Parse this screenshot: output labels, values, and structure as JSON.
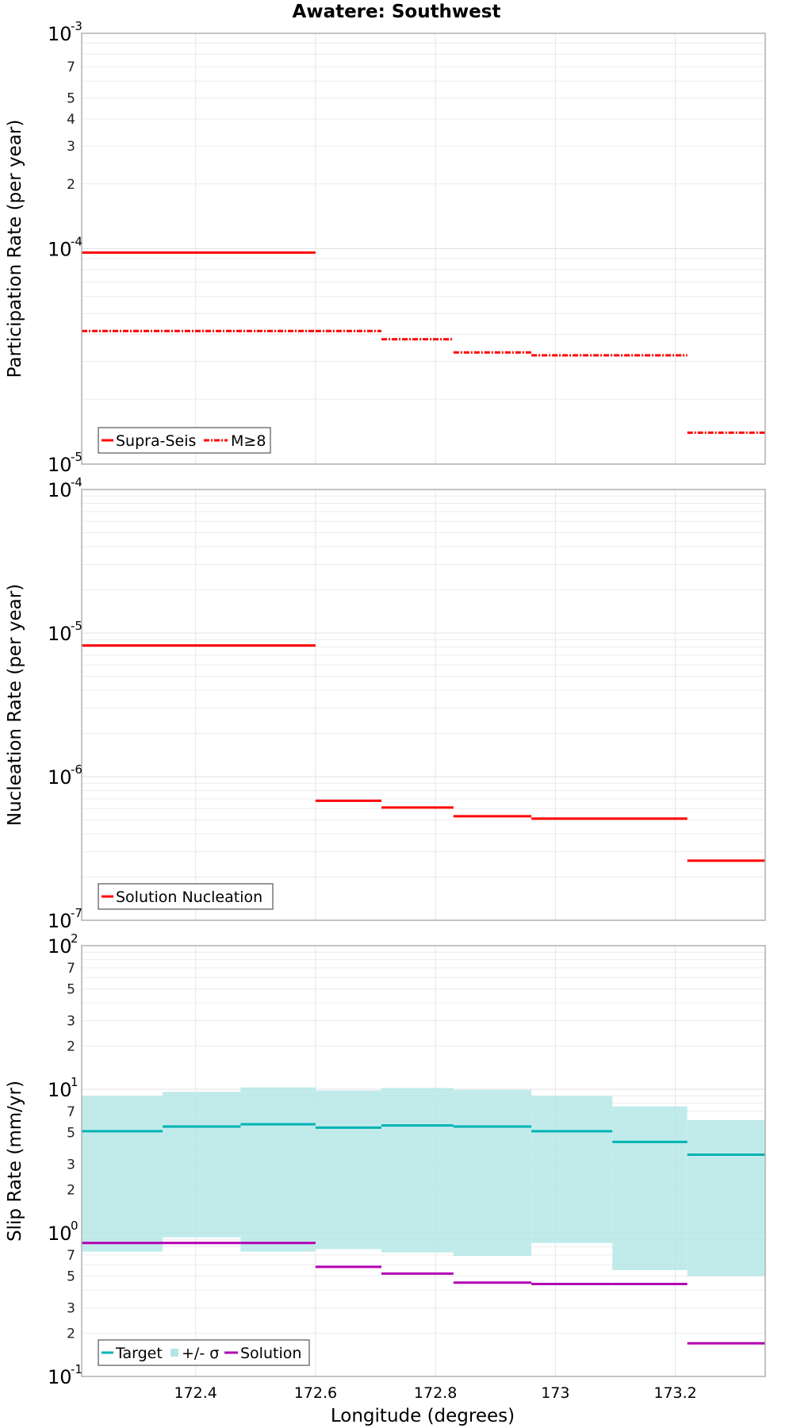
{
  "chart_data": {
    "type": "line",
    "title": "Awatere: Southwest",
    "xlabel": "Longitude (degrees)",
    "xlim": [
      172.21,
      173.35
    ],
    "xticks": [
      "172.4",
      "172.6",
      "172.8",
      "173",
      "173.2"
    ],
    "xtick_values": [
      172.4,
      172.6,
      172.8,
      173.0,
      173.2
    ],
    "panels": [
      {
        "ylabel": "Participation Rate (per year)",
        "ylim_exp": [
          -5,
          -3
        ],
        "y_major_labels": [
          {
            "exp": -3,
            "base": "10",
            "sup": "-3"
          },
          {
            "exp": -4,
            "base": "10",
            "sup": "-4"
          },
          {
            "exp": -5,
            "base": "10",
            "sup": "-5"
          }
        ],
        "y_minor_labels": [
          "7",
          "5",
          "4",
          "3",
          "2"
        ],
        "series": [
          {
            "name": "Supra-Seis",
            "color": "#ff0000",
            "style": "solid",
            "segments": [
              {
                "x0": 172.21,
                "x1": 172.6,
                "y": 9.6e-05
              }
            ]
          },
          {
            "name": "M≥8",
            "color": "#ff0000",
            "style": "dashdot",
            "segments": [
              {
                "x0": 172.21,
                "x1": 172.6,
                "y": 4.15e-05
              },
              {
                "x0": 172.6,
                "x1": 172.71,
                "y": 4.15e-05
              },
              {
                "x0": 172.71,
                "x1": 172.83,
                "y": 3.8e-05
              },
              {
                "x0": 172.83,
                "x1": 172.96,
                "y": 3.3e-05
              },
              {
                "x0": 172.96,
                "x1": 173.22,
                "y": 3.2e-05
              },
              {
                "x0": 173.22,
                "x1": 173.35,
                "y": 1.4e-05
              }
            ]
          }
        ],
        "legend": [
          "Supra-Seis",
          "M≥8"
        ]
      },
      {
        "ylabel": "Nucleation Rate (per year)",
        "ylim_exp": [
          -7,
          -4
        ],
        "y_major_labels": [
          {
            "exp": -4,
            "base": "10",
            "sup": "-4"
          },
          {
            "exp": -5,
            "base": "10",
            "sup": "-5"
          },
          {
            "exp": -6,
            "base": "10",
            "sup": "-6"
          },
          {
            "exp": -7,
            "base": "10",
            "sup": "-7"
          }
        ],
        "y_minor_labels": [],
        "series": [
          {
            "name": "Solution Nucleation",
            "color": "#ff0000",
            "style": "solid",
            "segments": [
              {
                "x0": 172.21,
                "x1": 172.6,
                "y": 8.2e-06
              },
              {
                "x0": 172.6,
                "x1": 172.71,
                "y": 6.8e-07
              },
              {
                "x0": 172.71,
                "x1": 172.83,
                "y": 6.1e-07
              },
              {
                "x0": 172.83,
                "x1": 172.96,
                "y": 5.3e-07
              },
              {
                "x0": 172.96,
                "x1": 173.22,
                "y": 5.1e-07
              },
              {
                "x0": 173.22,
                "x1": 173.35,
                "y": 2.6e-07
              }
            ]
          }
        ],
        "legend": [
          "Solution Nucleation"
        ]
      },
      {
        "ylabel": "Slip Rate (mm/yr)",
        "ylim_exp": [
          -1,
          2
        ],
        "y_major_labels": [
          {
            "exp": 2,
            "base": "10",
            "sup": "2"
          },
          {
            "exp": 1,
            "base": "10",
            "sup": "1"
          },
          {
            "exp": 0,
            "base": "10",
            "sup": "0"
          },
          {
            "exp": -1,
            "base": "10",
            "sup": "-1"
          }
        ],
        "y_minor_labels": [
          "7",
          "5",
          "3",
          "2",
          "7",
          "5",
          "3",
          "2",
          "7",
          "5",
          "3",
          "2"
        ],
        "bins": [
          {
            "x0": 172.21,
            "x1": 172.345,
            "target": 5.1,
            "lo": 0.74,
            "hi": 9.0,
            "solution": 0.85
          },
          {
            "x0": 172.345,
            "x1": 172.475,
            "target": 5.5,
            "lo": 0.93,
            "hi": 9.6,
            "solution": 0.85
          },
          {
            "x0": 172.475,
            "x1": 172.6,
            "target": 5.7,
            "lo": 0.74,
            "hi": 10.3,
            "solution": 0.85
          },
          {
            "x0": 172.6,
            "x1": 172.71,
            "target": 5.4,
            "lo": 0.77,
            "hi": 9.8,
            "solution": 0.58
          },
          {
            "x0": 172.71,
            "x1": 172.83,
            "target": 5.6,
            "lo": 0.73,
            "hi": 10.2,
            "solution": 0.52
          },
          {
            "x0": 172.83,
            "x1": 172.96,
            "target": 5.5,
            "lo": 0.69,
            "hi": 9.9,
            "solution": 0.45
          },
          {
            "x0": 172.96,
            "x1": 173.095,
            "target": 5.1,
            "lo": 0.85,
            "hi": 9.0,
            "solution": 0.44
          },
          {
            "x0": 173.095,
            "x1": 173.22,
            "target": 4.3,
            "lo": 0.55,
            "hi": 7.6,
            "solution": 0.44
          },
          {
            "x0": 173.22,
            "x1": 173.35,
            "target": 3.5,
            "lo": 0.5,
            "hi": 6.1,
            "solution": 0.17
          }
        ],
        "series_names": [
          "Target",
          "+/- σ",
          "Solution"
        ],
        "colors": {
          "target": "#00b3b3",
          "sigma": "#b3e6e6",
          "solution": "#b300b3"
        },
        "legend": [
          "Target",
          "+/- σ",
          "Solution"
        ]
      }
    ]
  }
}
